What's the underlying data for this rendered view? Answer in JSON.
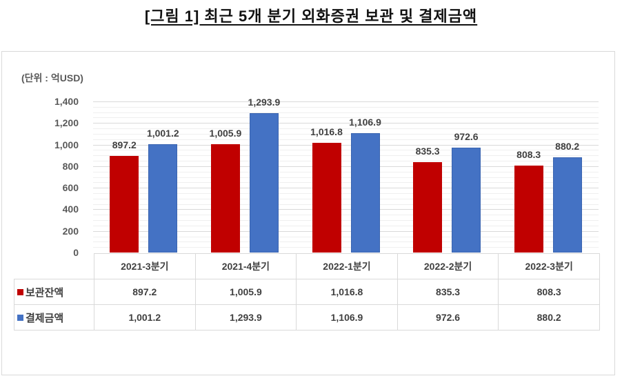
{
  "title": "[그림 1] 최근 5개 분기 외화증권 보관 및 결제금액",
  "unit_label": "(단위 : 억USD)",
  "colors": {
    "보관잔액": "#c00000",
    "결제금액": "#4472c4"
  },
  "y_ticks": [
    "1,400",
    "1,200",
    "1,000",
    "800",
    "600",
    "400",
    "200",
    "0"
  ],
  "categories": [
    "2021-3분기",
    "2021-4분기",
    "2022-1분기",
    "2022-2분기",
    "2022-3분기"
  ],
  "series": [
    {
      "name": "보관잔액",
      "color": "#c00000",
      "values": [
        897.2,
        1005.9,
        1016.8,
        835.3,
        808.3
      ],
      "labels": [
        "897.2",
        "1,005.9",
        "1,016.8",
        "835.3",
        "808.3"
      ]
    },
    {
      "name": "결제금액",
      "color": "#4472c4",
      "values": [
        1001.2,
        1293.9,
        1106.9,
        972.6,
        880.2
      ],
      "labels": [
        "1,001.2",
        "1,293.9",
        "1,106.9",
        "972.6",
        "880.2"
      ]
    }
  ],
  "chart_data": {
    "type": "bar",
    "title": "[그림 1] 최근 5개 분기 외화증권 보관 및 결제금액",
    "xlabel": "",
    "ylabel": "(단위 : 억USD)",
    "ylim": [
      0,
      1400
    ],
    "y_ticks": [
      0,
      200,
      400,
      600,
      800,
      1000,
      1200,
      1400
    ],
    "grid": true,
    "legend_position": "data-table (bottom)",
    "categories": [
      "2021-3분기",
      "2021-4분기",
      "2022-1분기",
      "2022-2분기",
      "2022-3분기"
    ],
    "series": [
      {
        "name": "보관잔액",
        "values": [
          897.2,
          1005.9,
          1016.8,
          835.3,
          808.3
        ]
      },
      {
        "name": "결제금액",
        "values": [
          1001.2,
          1293.9,
          1106.9,
          972.6,
          880.2
        ]
      }
    ]
  }
}
